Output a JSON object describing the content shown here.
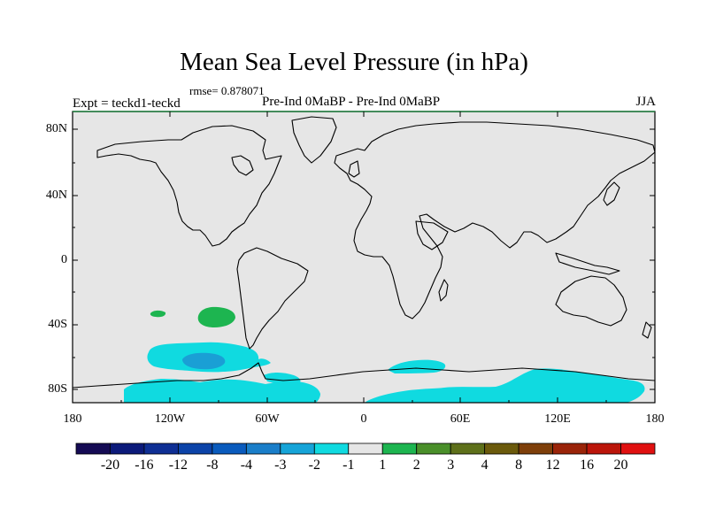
{
  "title": "Mean Sea Level Pressure (in hPa)",
  "rmse": "rmse= 0.878071",
  "experiment": "Expt = teckd1-teckd",
  "subtitle": "Pre-Ind 0MaBP - Pre-Ind 0MaBP",
  "season": "JJA",
  "axes": {
    "lat_labels": [
      "80N",
      "40N",
      "0",
      "40S",
      "80S"
    ],
    "lon_labels": [
      "180",
      "120W",
      "60W",
      "0",
      "60E",
      "120E",
      "180"
    ]
  },
  "colorbar": {
    "labels": [
      "-20",
      "-16",
      "-12",
      "-8",
      "-4",
      "-3",
      "-2",
      "-1",
      "1",
      "2",
      "3",
      "4",
      "8",
      "12",
      "16",
      "20"
    ],
    "colors": [
      "#150b54",
      "#0c1a7a",
      "#0f2f94",
      "#0c43a8",
      "#0a5bbd",
      "#1a7ec9",
      "#16a4d8",
      "#10dae0",
      "#e6e6e6",
      "#1db550",
      "#4a8f2a",
      "#5e701a",
      "#6b5a0c",
      "#7e3f0a",
      "#9a2409",
      "#bb150a",
      "#e01010"
    ]
  },
  "colors": {
    "background": "#e6e6e6",
    "light_negative": "#10dae0",
    "medium_negative": "#1a9fd5",
    "positive": "#1db550",
    "frame_top": "#1a7a3a"
  }
}
